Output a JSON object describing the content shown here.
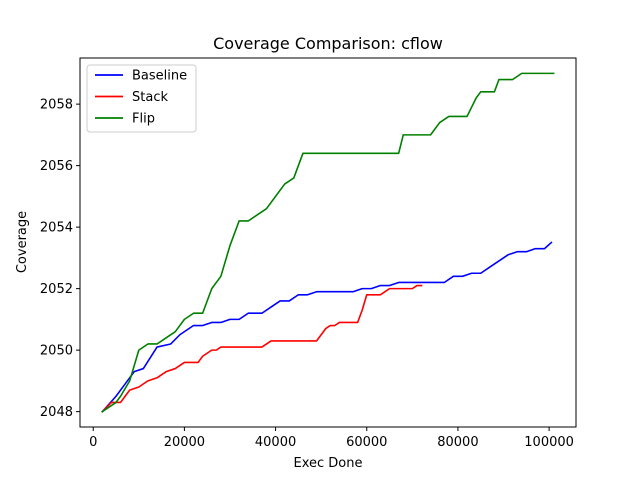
{
  "chart_data": {
    "type": "line",
    "title": "Coverage Comparison: cflow",
    "xlabel": "Exec Done",
    "ylabel": "Coverage",
    "xlim": [
      -2900,
      105900
    ],
    "ylim": [
      2047.5,
      2059.5
    ],
    "xticks": [
      0,
      20000,
      40000,
      60000,
      80000,
      100000
    ],
    "xtick_labels": [
      "0",
      "20000",
      "40000",
      "60000",
      "80000",
      "100000"
    ],
    "yticks": [
      2048,
      2050,
      2052,
      2054,
      2056,
      2058
    ],
    "ytick_labels": [
      "2048",
      "2050",
      "2052",
      "2054",
      "2056",
      "2058"
    ],
    "grid": false,
    "legend_position": "upper-left",
    "series": [
      {
        "name": "Baseline",
        "color": "#0000ff",
        "x": [
          2000,
          5000,
          7000,
          9000,
          11000,
          14000,
          17000,
          19000,
          22000,
          24000,
          26000,
          28000,
          30000,
          32000,
          34000,
          37000,
          39000,
          41000,
          43000,
          45000,
          47000,
          49000,
          51000,
          53000,
          55000,
          57000,
          59000,
          61000,
          63000,
          65000,
          67000,
          69000,
          71000,
          73000,
          75000,
          77000,
          79000,
          81000,
          83000,
          85000,
          87000,
          89000,
          91000,
          93000,
          95000,
          97000,
          99000,
          100500
        ],
        "y": [
          2048.0,
          2048.5,
          2048.9,
          2049.3,
          2049.4,
          2050.1,
          2050.2,
          2050.5,
          2050.8,
          2050.8,
          2050.9,
          2050.9,
          2051.0,
          2051.0,
          2051.2,
          2051.2,
          2051.4,
          2051.6,
          2051.6,
          2051.8,
          2051.8,
          2051.9,
          2051.9,
          2051.9,
          2051.9,
          2051.9,
          2052.0,
          2052.0,
          2052.1,
          2052.1,
          2052.2,
          2052.2,
          2052.2,
          2052.2,
          2052.2,
          2052.2,
          2052.4,
          2052.4,
          2052.5,
          2052.5,
          2052.7,
          2052.9,
          2053.1,
          2053.2,
          2053.2,
          2053.3,
          2053.3,
          2053.5
        ]
      },
      {
        "name": "Stack",
        "color": "#ff0000",
        "x": [
          2000,
          4000,
          6000,
          8000,
          10000,
          12000,
          14000,
          16000,
          18000,
          20000,
          23000,
          24000,
          26000,
          27000,
          28000,
          30000,
          32000,
          35000,
          37000,
          39000,
          41000,
          45000,
          48000,
          49000,
          50000,
          51000,
          52000,
          53000,
          54000,
          55000,
          56000,
          57000,
          58000,
          59000,
          60000,
          61000,
          63000,
          65000,
          67000,
          70000,
          71000,
          72000
        ],
        "y": [
          2048.0,
          2048.3,
          2048.3,
          2048.7,
          2048.8,
          2049.0,
          2049.1,
          2049.3,
          2049.4,
          2049.6,
          2049.6,
          2049.8,
          2050.0,
          2050.0,
          2050.1,
          2050.1,
          2050.1,
          2050.1,
          2050.1,
          2050.3,
          2050.3,
          2050.3,
          2050.3,
          2050.3,
          2050.5,
          2050.7,
          2050.8,
          2050.8,
          2050.9,
          2050.9,
          2050.9,
          2050.9,
          2050.9,
          2051.3,
          2051.8,
          2051.8,
          2051.8,
          2052.0,
          2052.0,
          2052.0,
          2052.1,
          2052.1
        ]
      },
      {
        "name": "Flip",
        "color": "#008000",
        "x": [
          2000,
          5000,
          6000,
          8000,
          10000,
          12000,
          14000,
          16000,
          18000,
          20000,
          22000,
          24000,
          26000,
          28000,
          30000,
          32000,
          34000,
          36000,
          38000,
          40000,
          42000,
          44000,
          46000,
          66000,
          67000,
          68000,
          74000,
          76000,
          78000,
          80000,
          82000,
          84000,
          85000,
          87000,
          88000,
          89000,
          92000,
          94000,
          95000,
          101000
        ],
        "y": [
          2048.0,
          2048.3,
          2048.5,
          2049.0,
          2050.0,
          2050.2,
          2050.2,
          2050.4,
          2050.6,
          2051.0,
          2051.2,
          2051.2,
          2052.0,
          2052.4,
          2053.4,
          2054.2,
          2054.2,
          2054.4,
          2054.6,
          2055.0,
          2055.4,
          2055.6,
          2056.4,
          2056.4,
          2056.4,
          2057.0,
          2057.0,
          2057.4,
          2057.6,
          2057.6,
          2057.6,
          2058.2,
          2058.4,
          2058.4,
          2058.4,
          2058.8,
          2058.8,
          2059.0,
          2059.0,
          2059.0
        ]
      }
    ]
  }
}
